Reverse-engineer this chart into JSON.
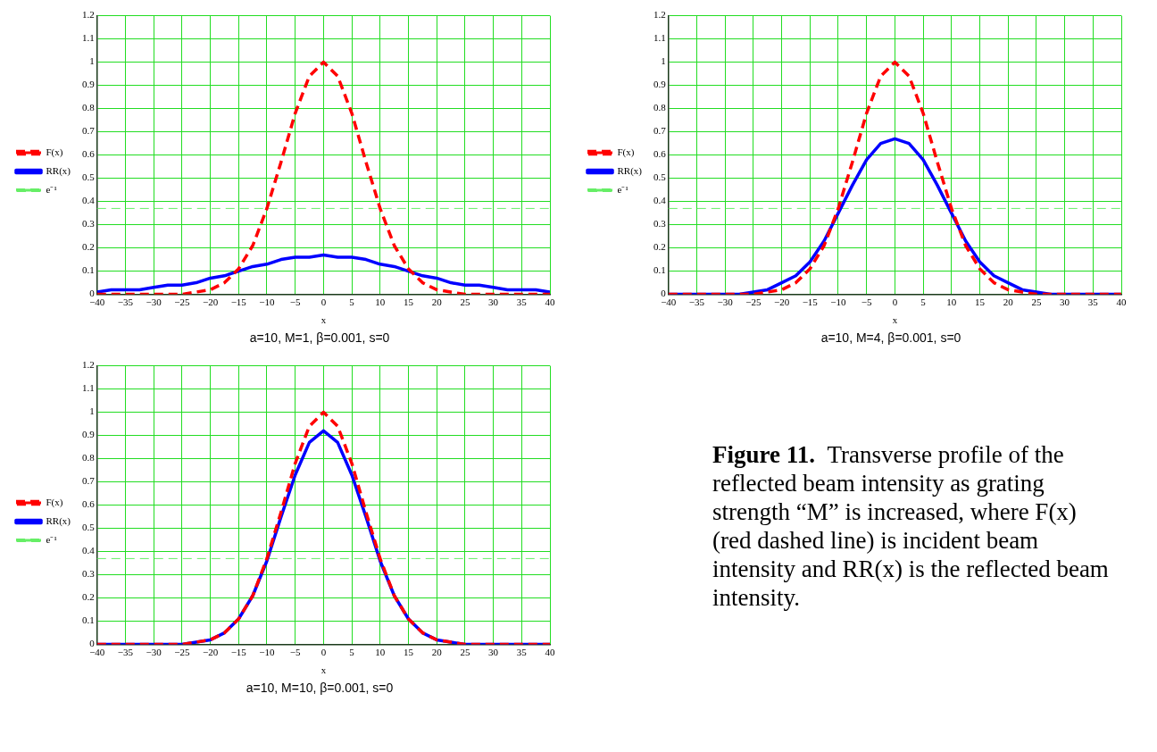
{
  "chart_data": [
    {
      "type": "line",
      "xlabel": "x",
      "annotations": [
        "a=10, M=1, β=0.001, s=0"
      ],
      "xlim": [
        -40,
        40
      ],
      "xticks": [
        -40,
        -35,
        -30,
        -25,
        -20,
        -15,
        -10,
        -5,
        0,
        5,
        10,
        15,
        20,
        25,
        30,
        35,
        40
      ],
      "ylim": [
        0,
        1.2
      ],
      "yticks": [
        0,
        0.1,
        0.2,
        0.3,
        0.4,
        0.5,
        0.6,
        0.7,
        0.8,
        0.9,
        1,
        1.1,
        1.2
      ],
      "grid": true,
      "legend": "left",
      "marker": "none",
      "x": [
        -40,
        -37.5,
        -35,
        -32.5,
        -30,
        -27.5,
        -25,
        -22.5,
        -20,
        -17.5,
        -15,
        -12.5,
        -10,
        -7.5,
        -5,
        -2.5,
        0,
        2.5,
        5,
        7.5,
        10,
        12.5,
        15,
        17.5,
        20,
        22.5,
        25,
        27.5,
        30,
        32.5,
        35,
        37.5,
        40
      ],
      "series": [
        {
          "name": "F(x)",
          "color": "#ff0000",
          "line_style": "dashed",
          "values": [
            0,
            0,
            0,
            0,
            0,
            0,
            0,
            0.01,
            0.02,
            0.05,
            0.11,
            0.21,
            0.37,
            0.57,
            0.78,
            0.94,
            1,
            0.94,
            0.78,
            0.57,
            0.37,
            0.21,
            0.11,
            0.05,
            0.02,
            0.01,
            0,
            0,
            0,
            0,
            0,
            0,
            0
          ]
        },
        {
          "name": "RR(x)",
          "color": "#0000ff",
          "line_style": "solid",
          "values": [
            0.01,
            0.02,
            0.02,
            0.02,
            0.03,
            0.04,
            0.04,
            0.05,
            0.07,
            0.08,
            0.1,
            0.12,
            0.13,
            0.15,
            0.16,
            0.16,
            0.17,
            0.16,
            0.16,
            0.15,
            0.13,
            0.12,
            0.1,
            0.08,
            0.07,
            0.05,
            0.04,
            0.04,
            0.03,
            0.02,
            0.02,
            0.02,
            0.01
          ]
        }
      ],
      "ref_lines": [
        {
          "axis": "y",
          "value": 0.37,
          "label": "e⁻¹",
          "color": "#66ee66",
          "line_style": "dashed"
        }
      ]
    },
    {
      "type": "line",
      "xlabel": "x",
      "annotations": [
        "a=10, M=4, β=0.001, s=0"
      ],
      "xlim": [
        -40,
        40
      ],
      "xticks": [
        -40,
        -35,
        -30,
        -25,
        -20,
        -15,
        -10,
        -5,
        0,
        5,
        10,
        15,
        20,
        25,
        30,
        35,
        40
      ],
      "ylim": [
        0,
        1.2
      ],
      "yticks": [
        0,
        0.1,
        0.2,
        0.3,
        0.4,
        0.5,
        0.6,
        0.7,
        0.8,
        0.9,
        1,
        1.1,
        1.2
      ],
      "grid": true,
      "legend": "left",
      "marker": "none",
      "x": [
        -40,
        -37.5,
        -35,
        -32.5,
        -30,
        -27.5,
        -25,
        -22.5,
        -20,
        -17.5,
        -15,
        -12.5,
        -10,
        -7.5,
        -5,
        -2.5,
        0,
        2.5,
        5,
        7.5,
        10,
        12.5,
        15,
        17.5,
        20,
        22.5,
        25,
        27.5,
        30,
        32.5,
        35,
        37.5,
        40
      ],
      "series": [
        {
          "name": "F(x)",
          "color": "#ff0000",
          "line_style": "dashed",
          "values": [
            0,
            0,
            0,
            0,
            0,
            0,
            0,
            0.01,
            0.02,
            0.05,
            0.11,
            0.21,
            0.37,
            0.57,
            0.78,
            0.94,
            1,
            0.94,
            0.78,
            0.57,
            0.37,
            0.21,
            0.11,
            0.05,
            0.02,
            0.01,
            0,
            0,
            0,
            0,
            0,
            0,
            0
          ]
        },
        {
          "name": "RR(x)",
          "color": "#0000ff",
          "line_style": "solid",
          "values": [
            0,
            0,
            0,
            0,
            0,
            0,
            0.01,
            0.02,
            0.05,
            0.08,
            0.14,
            0.23,
            0.35,
            0.47,
            0.58,
            0.65,
            0.67,
            0.65,
            0.58,
            0.47,
            0.35,
            0.23,
            0.14,
            0.08,
            0.05,
            0.02,
            0.01,
            0,
            0,
            0,
            0,
            0,
            0
          ]
        }
      ],
      "ref_lines": [
        {
          "axis": "y",
          "value": 0.37,
          "label": "e⁻¹",
          "color": "#66ee66",
          "line_style": "dashed"
        }
      ]
    },
    {
      "type": "line",
      "xlabel": "x",
      "annotations": [
        "a=10, M=10, β=0.001, s=0"
      ],
      "xlim": [
        -40,
        40
      ],
      "xticks": [
        -40,
        -35,
        -30,
        -25,
        -20,
        -15,
        -10,
        -5,
        0,
        5,
        10,
        15,
        20,
        25,
        30,
        35,
        40
      ],
      "ylim": [
        0,
        1.2
      ],
      "yticks": [
        0,
        0.1,
        0.2,
        0.3,
        0.4,
        0.5,
        0.6,
        0.7,
        0.8,
        0.9,
        1,
        1.1,
        1.2
      ],
      "grid": true,
      "legend": "left",
      "marker": "none",
      "x": [
        -40,
        -37.5,
        -35,
        -32.5,
        -30,
        -27.5,
        -25,
        -22.5,
        -20,
        -17.5,
        -15,
        -12.5,
        -10,
        -7.5,
        -5,
        -2.5,
        0,
        2.5,
        5,
        7.5,
        10,
        12.5,
        15,
        17.5,
        20,
        22.5,
        25,
        27.5,
        30,
        32.5,
        35,
        37.5,
        40
      ],
      "series": [
        {
          "name": "F(x)",
          "color": "#ff0000",
          "line_style": "dashed",
          "values": [
            0,
            0,
            0,
            0,
            0,
            0,
            0,
            0.01,
            0.02,
            0.05,
            0.11,
            0.21,
            0.37,
            0.57,
            0.78,
            0.94,
            1,
            0.94,
            0.78,
            0.57,
            0.37,
            0.21,
            0.11,
            0.05,
            0.02,
            0.01,
            0,
            0,
            0,
            0,
            0,
            0,
            0
          ]
        },
        {
          "name": "RR(x)",
          "color": "#0000ff",
          "line_style": "solid",
          "values": [
            0,
            0,
            0,
            0,
            0,
            0,
            0,
            0.01,
            0.02,
            0.05,
            0.11,
            0.21,
            0.36,
            0.55,
            0.73,
            0.87,
            0.92,
            0.87,
            0.73,
            0.55,
            0.36,
            0.21,
            0.11,
            0.05,
            0.02,
            0.01,
            0,
            0,
            0,
            0,
            0,
            0,
            0
          ]
        }
      ],
      "ref_lines": [
        {
          "axis": "y",
          "value": 0.37,
          "label": "e⁻¹",
          "color": "#66ee66",
          "line_style": "dashed"
        }
      ]
    },
    {
      "type": "other",
      "annotations": [
        "Figure 11.",
        "Transverse profile of the reflected beam intensity as grating strength “M” is increased, where F(x) (red dashed line) is incident beam intensity and RR(x) is the reflected beam intensity."
      ]
    }
  ]
}
